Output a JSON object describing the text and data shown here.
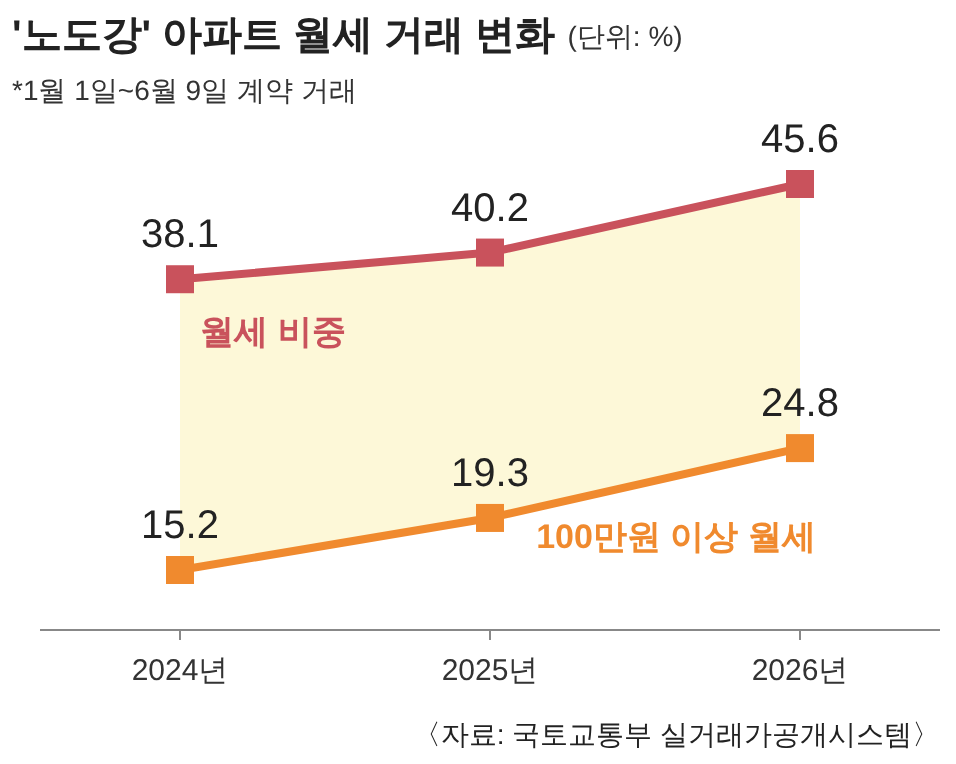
{
  "chart_data": {
    "type": "line",
    "title": "'노도강' 아파트 월세 거래 변화",
    "subtitle": "*1월 1일~6월 9일 계약 거래",
    "annotations": [
      "(단위: %)",
      "〈자료: 국토교통부 실거래가공개시스템〉"
    ],
    "categories": [
      "2024년",
      "2025년",
      "2026년"
    ],
    "series": [
      {
        "name": "월세 비중",
        "color": "#c9525c",
        "values": [
          38.1,
          40.2,
          45.6
        ]
      },
      {
        "name": "100만원 이상 월세",
        "color": "#f08a2e",
        "values": [
          15.2,
          19.3,
          24.8
        ]
      }
    ],
    "data_labels": true,
    "marker": "square",
    "legend": false
  }
}
